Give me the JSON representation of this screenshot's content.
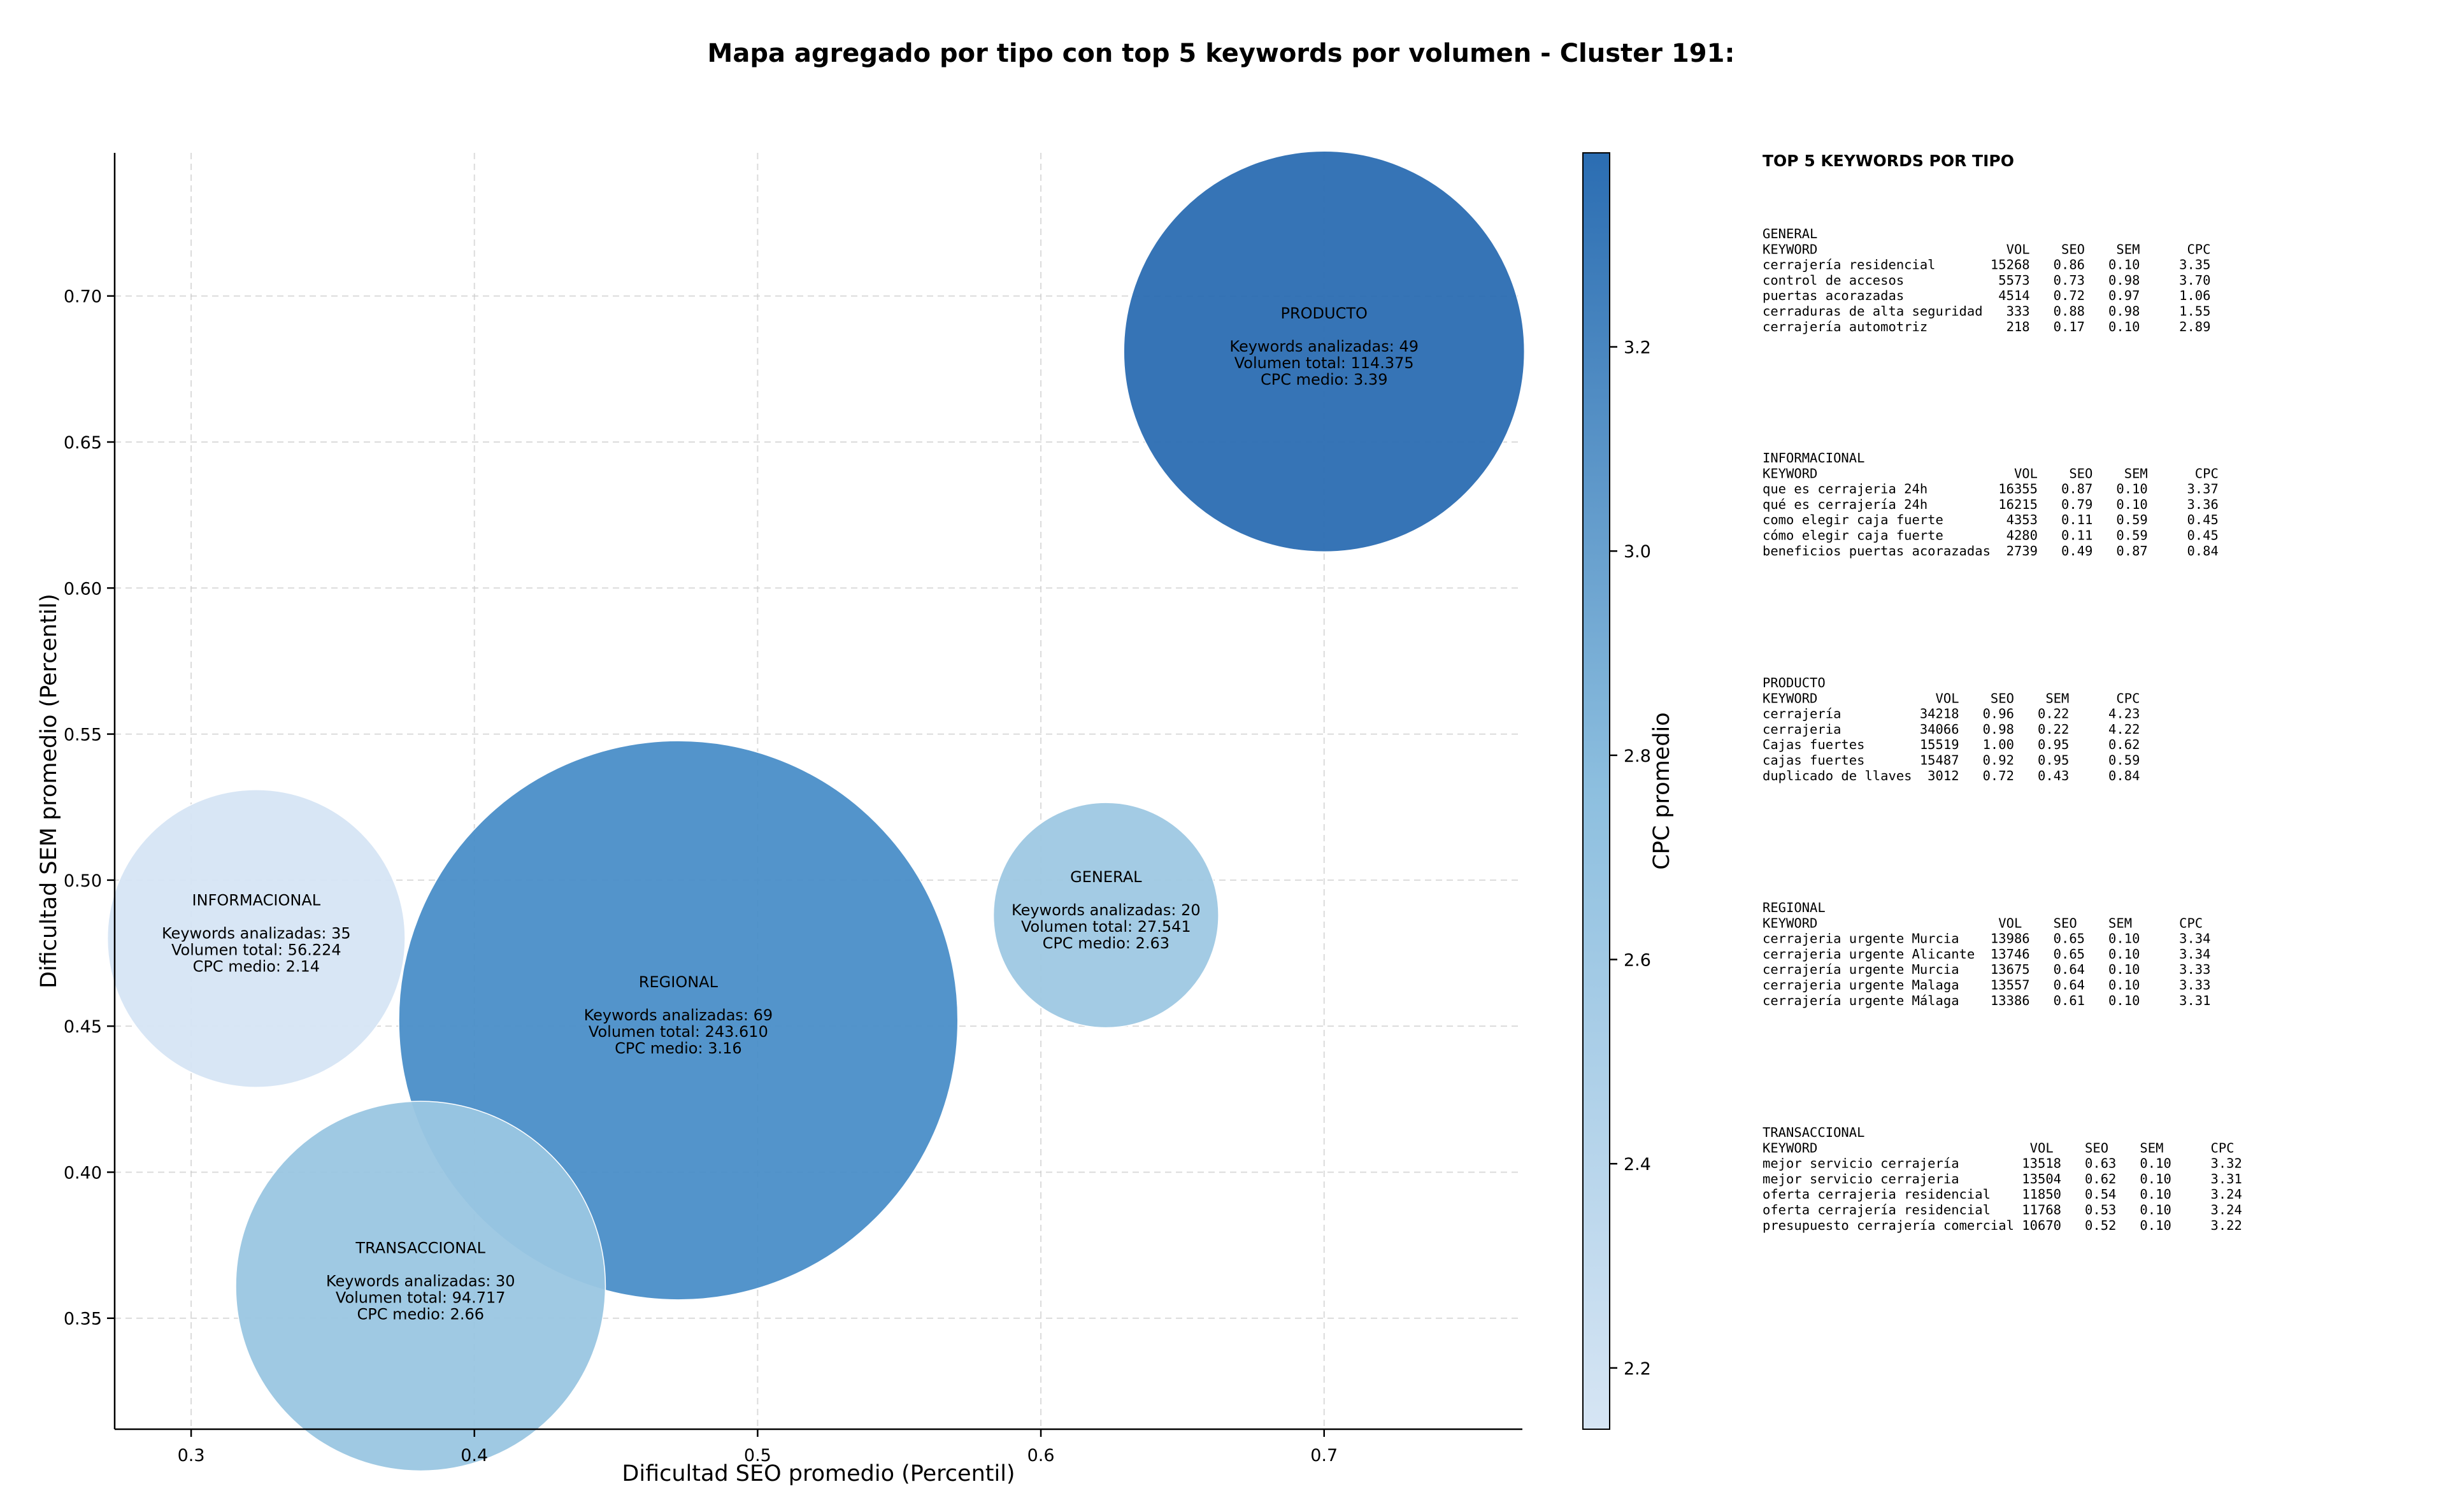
{
  "colors": {
    "colormap_light": "#d6e5f4",
    "colormap_dark": "#2b6db2",
    "bubble_stroke": "#ffffff",
    "grid": "#cccccc"
  },
  "chart_data": {
    "type": "scatter",
    "title": "Mapa agregado por tipo con top 5 keywords por volumen - Cluster 191:",
    "xlabel": "Dificultad SEO promedio (Percentil)",
    "ylabel": "Dificultad SEM promedio (Percentil)",
    "xlim": [
      0.273,
      0.77
    ],
    "ylim": [
      0.312,
      0.749
    ],
    "xticks": [
      0.3,
      0.4,
      0.5,
      0.6,
      0.7
    ],
    "yticks": [
      0.35,
      0.4,
      0.45,
      0.5,
      0.55,
      0.6,
      0.65,
      0.7
    ],
    "grid": true,
    "bubble_size": "Volumen total",
    "bubble_color": "CPC medio",
    "colorbar": {
      "label": "CPC promedio",
      "range": [
        2.14,
        3.39
      ],
      "ticks": [
        "2.2",
        "2.4",
        "2.6",
        "2.8",
        "3.0",
        "3.2"
      ],
      "tick_values": [
        2.2,
        2.4,
        2.6,
        2.8,
        3.0,
        3.2
      ]
    },
    "points": [
      {
        "label": "PRODUCTO",
        "x": 0.7,
        "y": 0.681,
        "cpc": 3.39,
        "volume": 114375,
        "lines": [
          "Keywords analizadas: 49",
          "Volumen total: 114.375",
          "CPC medio: 3.39"
        ]
      },
      {
        "label": "INFORMACIONAL",
        "x": 0.323,
        "y": 0.48,
        "cpc": 2.14,
        "volume": 56224,
        "lines": [
          "Keywords analizadas: 35",
          "Volumen total: 56.224",
          "CPC medio: 2.14"
        ]
      },
      {
        "label": "REGIONAL",
        "x": 0.472,
        "y": 0.452,
        "cpc": 3.16,
        "volume": 243610,
        "lines": [
          "Keywords analizadas: 69",
          "Volumen total: 243.610",
          "CPC medio: 3.16"
        ]
      },
      {
        "label": "GENERAL",
        "x": 0.623,
        "y": 0.488,
        "cpc": 2.63,
        "volume": 27541,
        "lines": [
          "Keywords analizadas: 20",
          "Volumen total: 27.541",
          "CPC medio: 2.63"
        ]
      },
      {
        "label": "TRANSACCIONAL",
        "x": 0.381,
        "y": 0.361,
        "cpc": 2.66,
        "volume": 94717,
        "lines": [
          "Keywords analizadas: 30",
          "Volumen total: 94.717",
          "CPC medio: 2.66"
        ]
      }
    ]
  },
  "panel": {
    "heading": "TOP 5 KEYWORDS POR TIPO",
    "sections": [
      {
        "name": "GENERAL",
        "lines": [
          "KEYWORD                        VOL    SEO    SEM      CPC",
          "cerrajería residencial       15268   0.86   0.10     3.35",
          "control de accesos            5573   0.73   0.98     3.70",
          "puertas acorazadas            4514   0.72   0.97     1.06",
          "cerraduras de alta seguridad   333   0.88   0.98     1.55",
          "cerrajería automotriz          218   0.17   0.10     2.89"
        ]
      },
      {
        "name": "INFORMACIONAL",
        "lines": [
          "KEYWORD                         VOL    SEO    SEM      CPC",
          "que es cerrajeria 24h         16355   0.87   0.10     3.37",
          "qué es cerrajería 24h         16215   0.79   0.10     3.36",
          "como elegir caja fuerte        4353   0.11   0.59     0.45",
          "cómo elegir caja fuerte        4280   0.11   0.59     0.45",
          "beneficios puertas acorazadas  2739   0.49   0.87     0.84"
        ]
      },
      {
        "name": "PRODUCTO",
        "lines": [
          "KEYWORD               VOL    SEO    SEM      CPC",
          "cerrajería          34218   0.96   0.22     4.23",
          "cerrajeria          34066   0.98   0.22     4.22",
          "Cajas fuertes       15519   1.00   0.95     0.62",
          "cajas fuertes       15487   0.92   0.95     0.59",
          "duplicado de llaves  3012   0.72   0.43     0.84"
        ]
      },
      {
        "name": "REGIONAL",
        "lines": [
          "KEYWORD                       VOL    SEO    SEM      CPC",
          "cerrajeria urgente Murcia    13986   0.65   0.10     3.34",
          "cerrajeria urgente Alicante  13746   0.65   0.10     3.34",
          "cerrajería urgente Murcia    13675   0.64   0.10     3.33",
          "cerrajeria urgente Malaga    13557   0.64   0.10     3.33",
          "cerrajería urgente Málaga    13386   0.61   0.10     3.31"
        ]
      },
      {
        "name": "TRANSACCIONAL",
        "lines": [
          "KEYWORD                           VOL    SEO    SEM      CPC",
          "mejor servicio cerrajería        13518   0.63   0.10     3.32",
          "mejor servicio cerrajeria        13504   0.62   0.10     3.31",
          "oferta cerrajeria residencial    11850   0.54   0.10     3.24",
          "oferta cerrajería residencial    11768   0.53   0.10     3.24",
          "presupuesto cerrajería comercial 10670   0.52   0.10     3.22"
        ]
      }
    ]
  }
}
